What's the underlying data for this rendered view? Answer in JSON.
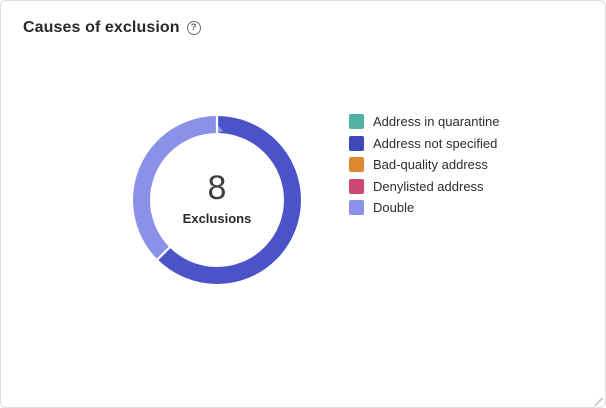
{
  "card": {
    "title": "Causes of exclusion",
    "help_icon": "?"
  },
  "colors": {
    "card_border": "#dedede",
    "segment_separator": "#ffffff"
  },
  "chart_data": {
    "type": "donut",
    "title": "Causes of exclusion",
    "center_value": "8",
    "center_label": "Exclusions",
    "total": 8,
    "start_angle": "top",
    "direction": "clockwise",
    "legend_position": "right",
    "series": [
      {
        "name": "Address in quarantine",
        "value": 0,
        "color": "#4FB2A3"
      },
      {
        "name": "Address not specified",
        "value": 5,
        "color": "#4A53C8"
      },
      {
        "name": "Bad-quality address",
        "value": 0,
        "color": "#E0882F"
      },
      {
        "name": "Denylisted address",
        "value": 0,
        "color": "#CD4877"
      },
      {
        "name": "Double",
        "value": 3,
        "color": "#8B90E8"
      }
    ]
  },
  "legend": {
    "items": [
      {
        "label": "Address in quarantine",
        "color": "#4FB2A3"
      },
      {
        "label": "Address not specified",
        "color": "#3E48B6"
      },
      {
        "label": "Bad-quality address",
        "color": "#E0882F"
      },
      {
        "label": "Denylisted address",
        "color": "#CD4877"
      },
      {
        "label": "Double",
        "color": "#8B90E8"
      }
    ]
  }
}
